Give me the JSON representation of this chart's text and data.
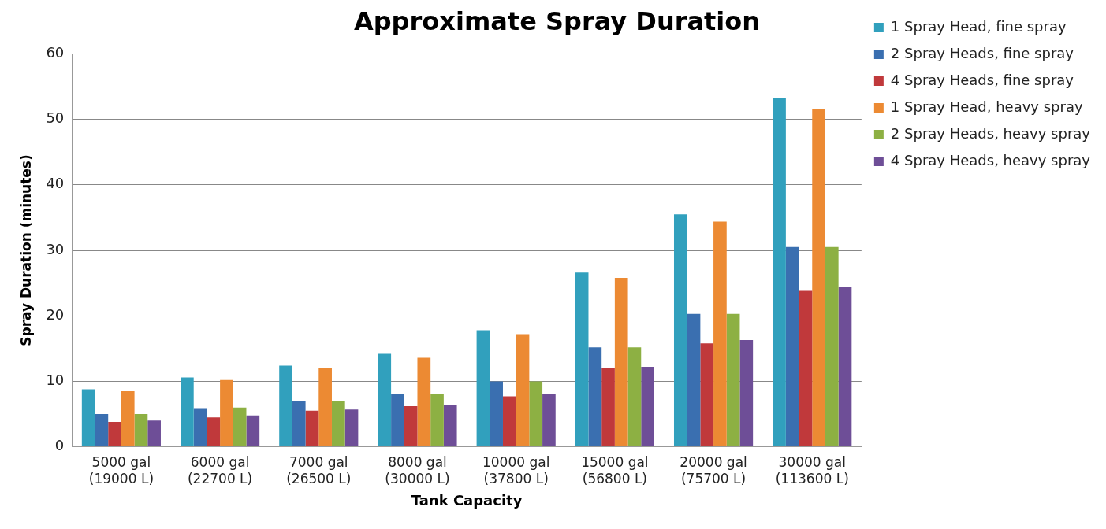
{
  "chart_data": {
    "type": "bar",
    "title": "Approximate Spray Duration",
    "xlabel": "Tank Capacity",
    "ylabel": "Spray Duration (minutes)",
    "categories": [
      "5000 gal\n(19000 L)",
      "6000 gal\n(22700 L)",
      "7000 gal\n(26500 L)",
      "8000 gal\n(30000 L)",
      "10000 gal\n(37800 L)",
      "15000 gal\n(56800 L)",
      "20000 gal\n(75700 L)",
      "30000 gal\n(113600 L)"
    ],
    "series": [
      {
        "name": "1 Spray Head, fine spray",
        "color": "#31a0bd",
        "values": [
          8.8,
          10.6,
          12.4,
          14.2,
          17.8,
          26.6,
          35.5,
          53.3
        ]
      },
      {
        "name": "2 Spray Heads, fine spray",
        "color": "#3a6fb0",
        "values": [
          5,
          5.9,
          7,
          8,
          10,
          15.2,
          20.3,
          30.5
        ]
      },
      {
        "name": "4 Spray Heads, fine spray",
        "color": "#c0393b",
        "values": [
          3.8,
          4.5,
          5.5,
          6.2,
          7.7,
          12,
          15.8,
          23.8
        ]
      },
      {
        "name": "1 Spray Head, heavy spray",
        "color": "#ec8a33",
        "values": [
          8.5,
          10.2,
          12,
          13.6,
          17.2,
          25.8,
          34.4,
          51.6
        ]
      },
      {
        "name": "2 Spray Heads, heavy spray",
        "color": "#8db043",
        "values": [
          5,
          6,
          7,
          8,
          10,
          15.2,
          20.3,
          30.5
        ]
      },
      {
        "name": "4 Spray Heads, heavy spray",
        "color": "#6e4e97",
        "values": [
          4,
          4.8,
          5.7,
          6.4,
          8,
          12.2,
          16.3,
          24.4
        ]
      }
    ],
    "ylim": [
      0,
      60
    ],
    "yticks": [
      0,
      10,
      20,
      30,
      40,
      50,
      60
    ],
    "grid": "y",
    "legend": "right"
  }
}
